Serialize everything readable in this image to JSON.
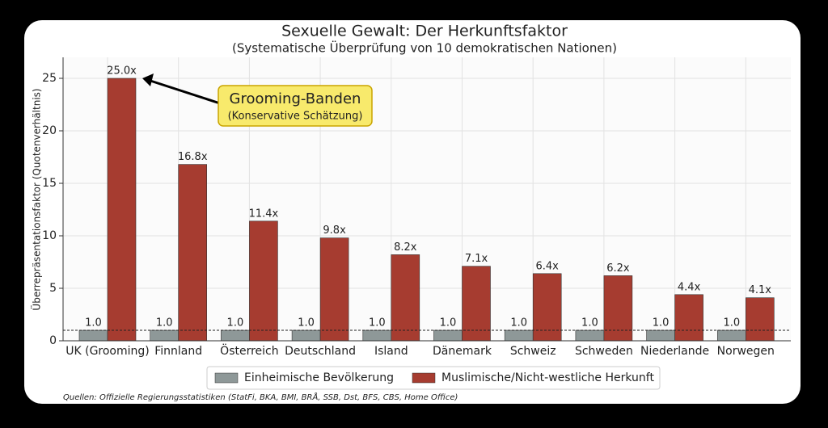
{
  "chart_data": {
    "type": "bar",
    "title": "Sexuelle Gewalt: Der Herkunftsfaktor",
    "subtitle": "(Systematische Überprüfung von 10 demokratischen Nationen)",
    "y_label": "Überrepräsentationsfaktor (Quotenverhältnis)",
    "categories": [
      "UK (Grooming)",
      "Finnland",
      "Österreich",
      "Deutschland",
      "Island",
      "Dänemark",
      "Schweiz",
      "Schweden",
      "Niederlande",
      "Norwegen"
    ],
    "series": [
      {
        "name": "Einheimische Bevölkerung",
        "color": "#8e9898",
        "values": [
          1,
          1,
          1,
          1,
          1,
          1,
          1,
          1,
          1,
          1
        ],
        "value_labels": [
          "1.0",
          "1.0",
          "1.0",
          "1.0",
          "1.0",
          "1.0",
          "1.0",
          "1.0",
          "1.0",
          "1.0"
        ]
      },
      {
        "name": "Muslimische/Nicht-westliche Herkunft",
        "color": "#a63c30",
        "values": [
          25.0,
          16.8,
          11.4,
          9.8,
          8.2,
          7.1,
          6.4,
          6.2,
          4.4,
          4.1
        ],
        "value_labels": [
          "25.0x",
          "16.8x",
          "11.4x",
          "9.8x",
          "8.2x",
          "7.1x",
          "6.4x",
          "6.2x",
          "4.4x",
          "4.1x"
        ]
      }
    ],
    "reference_line": 1,
    "ylim": [
      0,
      27
    ],
    "yticks": [
      0,
      5,
      10,
      15,
      20,
      25
    ],
    "grid": true,
    "annotation": {
      "title": "Grooming-Banden",
      "subtitle": "(Konservative Schätzung)",
      "target": 25.0
    },
    "source": "Quellen: Offizielle Regierungsstatistiken (StatFi, BKA, BMI, BRÅ, SSB, Dst, BFS, CBS, Home Office)"
  }
}
